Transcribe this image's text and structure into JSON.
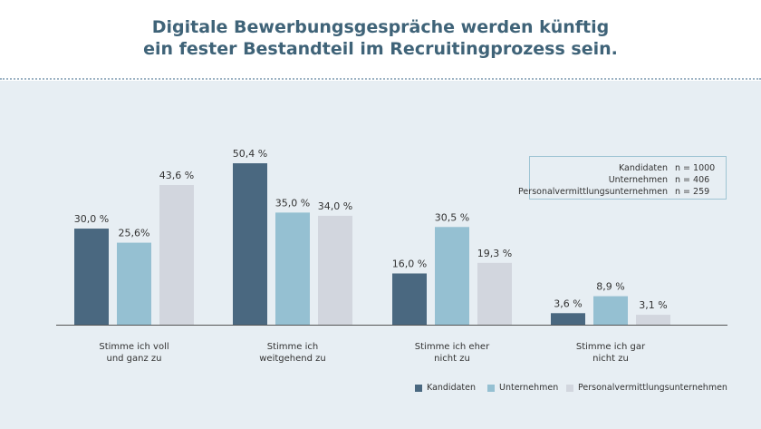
{
  "title": {
    "line1": "Digitale Bewerbungsgespräche werden künftig",
    "line2": "ein fester Bestandteil im Recruitingprozess sein."
  },
  "sample_box": {
    "rows": [
      {
        "label": "Kandidaten",
        "value": "n = 1000"
      },
      {
        "label": "Unternehmen",
        "value": "n = 406"
      },
      {
        "label": "Personalvermittlungsunternehmen",
        "value": "n = 259"
      }
    ]
  },
  "colors": {
    "Kandidaten": "#4a6880",
    "Unternehmen": "#95c0d2",
    "Personalvermittlungsunternehmen": "#d2d6de"
  },
  "chart_data": {
    "type": "bar",
    "categories": [
      [
        "Stimme ich voll",
        "und ganz zu"
      ],
      [
        "Stimme ich",
        "weitgehend zu"
      ],
      [
        "Stimme ich eher",
        "nicht zu"
      ],
      [
        "Stimme ich gar",
        "nicht zu"
      ]
    ],
    "series": [
      {
        "name": "Kandidaten",
        "values": [
          30.0,
          50.4,
          16.0,
          3.6
        ],
        "labels": [
          "30,0 %",
          "50,4 %",
          "16,0 %",
          "3,6 %"
        ]
      },
      {
        "name": "Unternehmen",
        "values": [
          25.6,
          35.0,
          30.5,
          8.9
        ],
        "labels": [
          "25,6%",
          "35,0 %",
          "30,5 %",
          "8,9 %"
        ]
      },
      {
        "name": "Personalvermittlungsunternehmen",
        "values": [
          43.6,
          34.0,
          19.3,
          3.1
        ],
        "labels": [
          "43,6 %",
          "34,0 %",
          "19,3 %",
          "3,1 %"
        ]
      }
    ],
    "ylim": [
      0,
      50.4
    ],
    "grid": false,
    "legend": "bottom-right"
  }
}
